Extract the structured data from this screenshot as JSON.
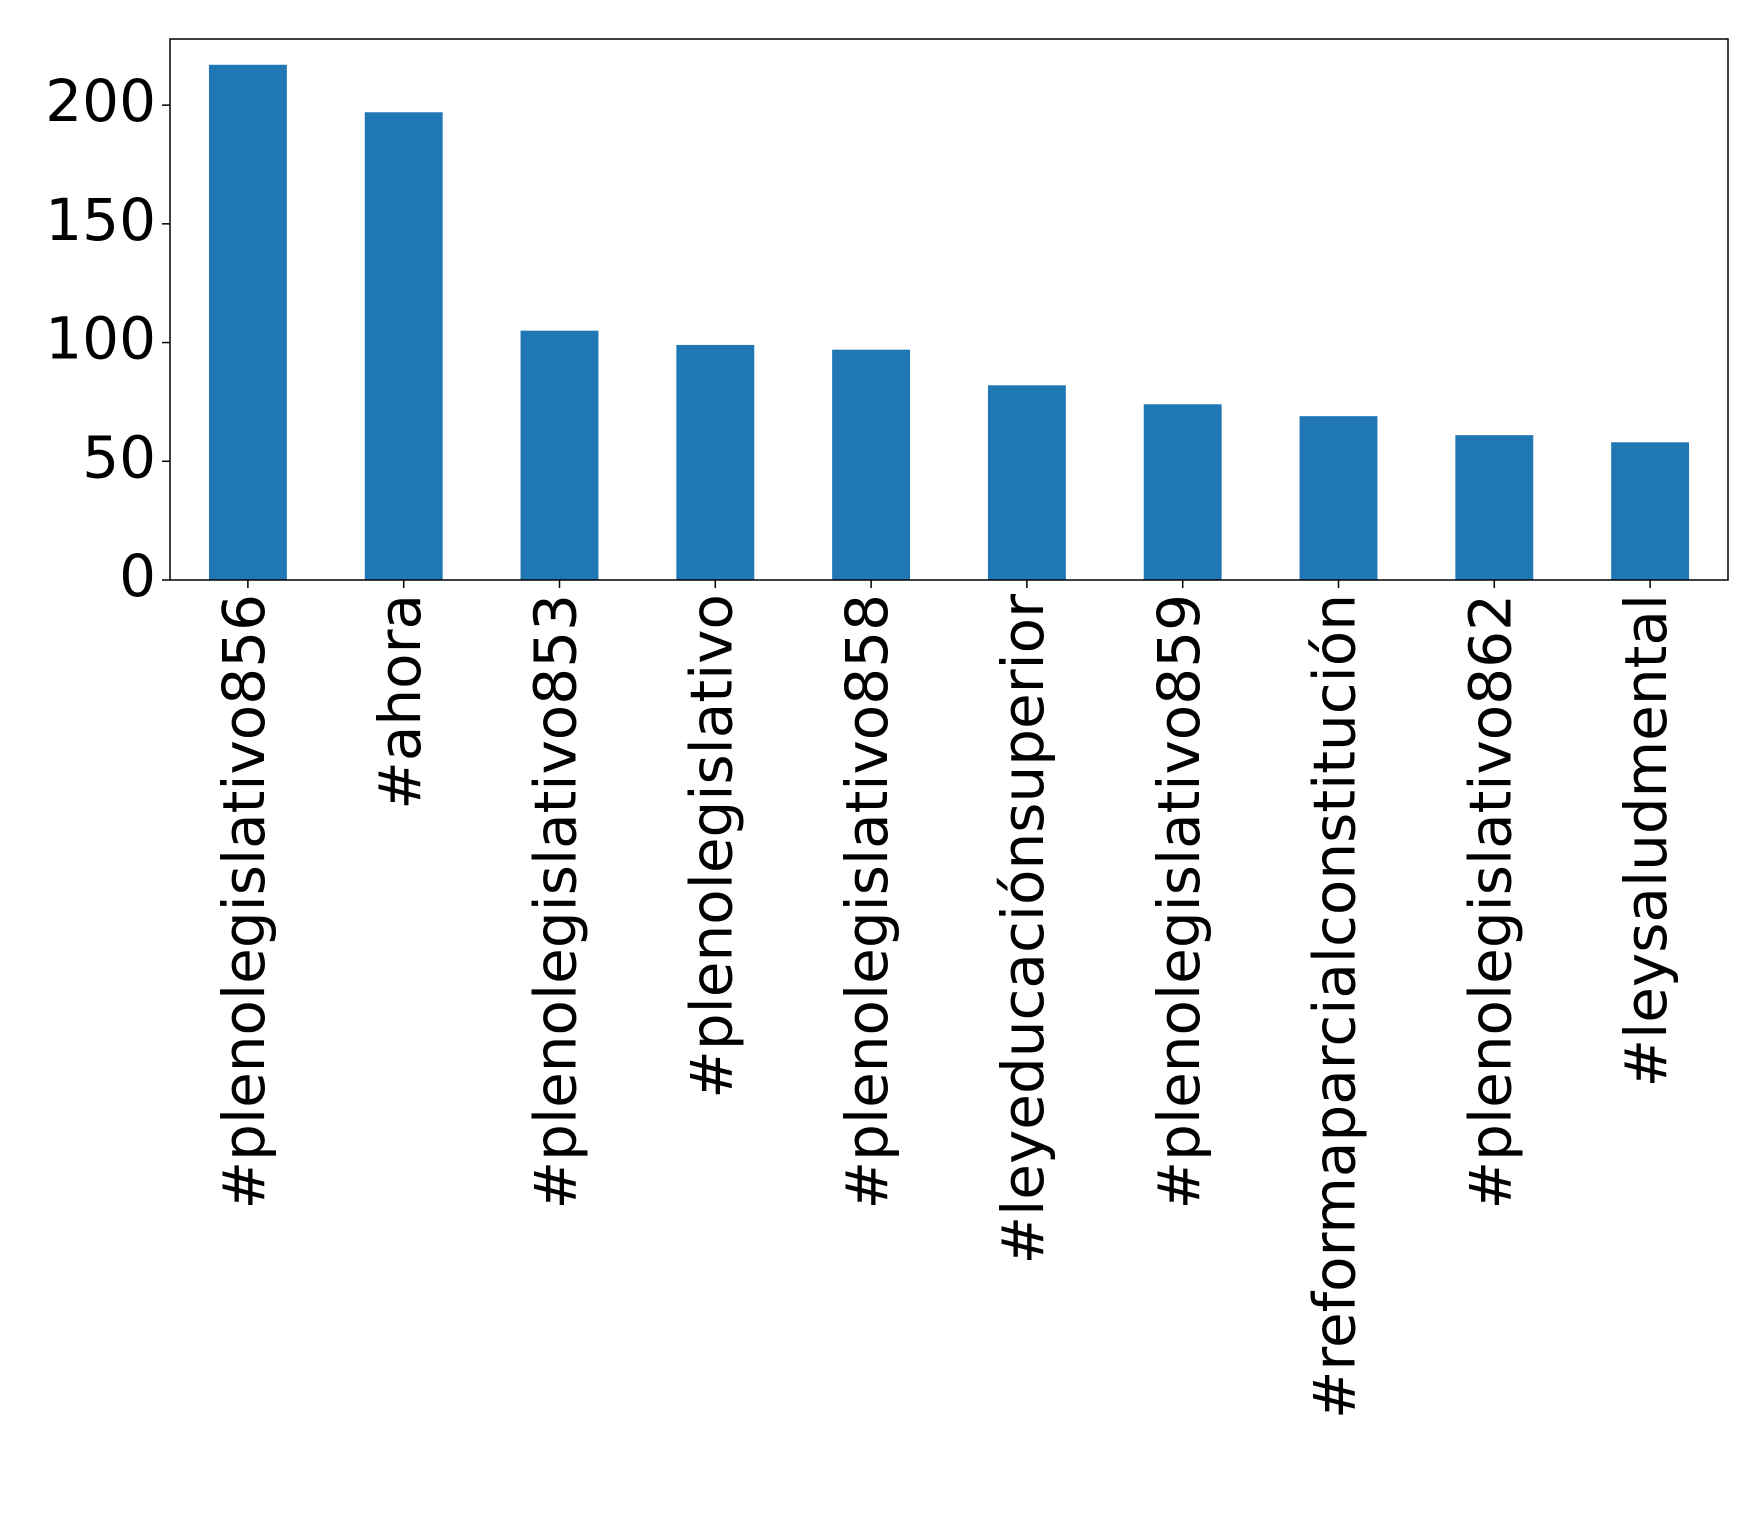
{
  "chart_data": {
    "type": "bar",
    "categories": [
      "#plenolegislativo856",
      "#ahora",
      "#plenolegislativo853",
      "#plenolegislativo",
      "#plenolegislativo858",
      "#leyeducaciónsuperior",
      "#plenolegislativo859",
      "#reformaparcialconstitución",
      "#plenolegislativo862",
      "#leysaludmental"
    ],
    "values": [
      217,
      197,
      105,
      99,
      97,
      82,
      74,
      69,
      61,
      58
    ],
    "color": "#1f77b4",
    "ylim": [
      0,
      227.85
    ],
    "yticks": [
      0,
      50,
      100,
      150,
      200
    ],
    "grid": false
  }
}
